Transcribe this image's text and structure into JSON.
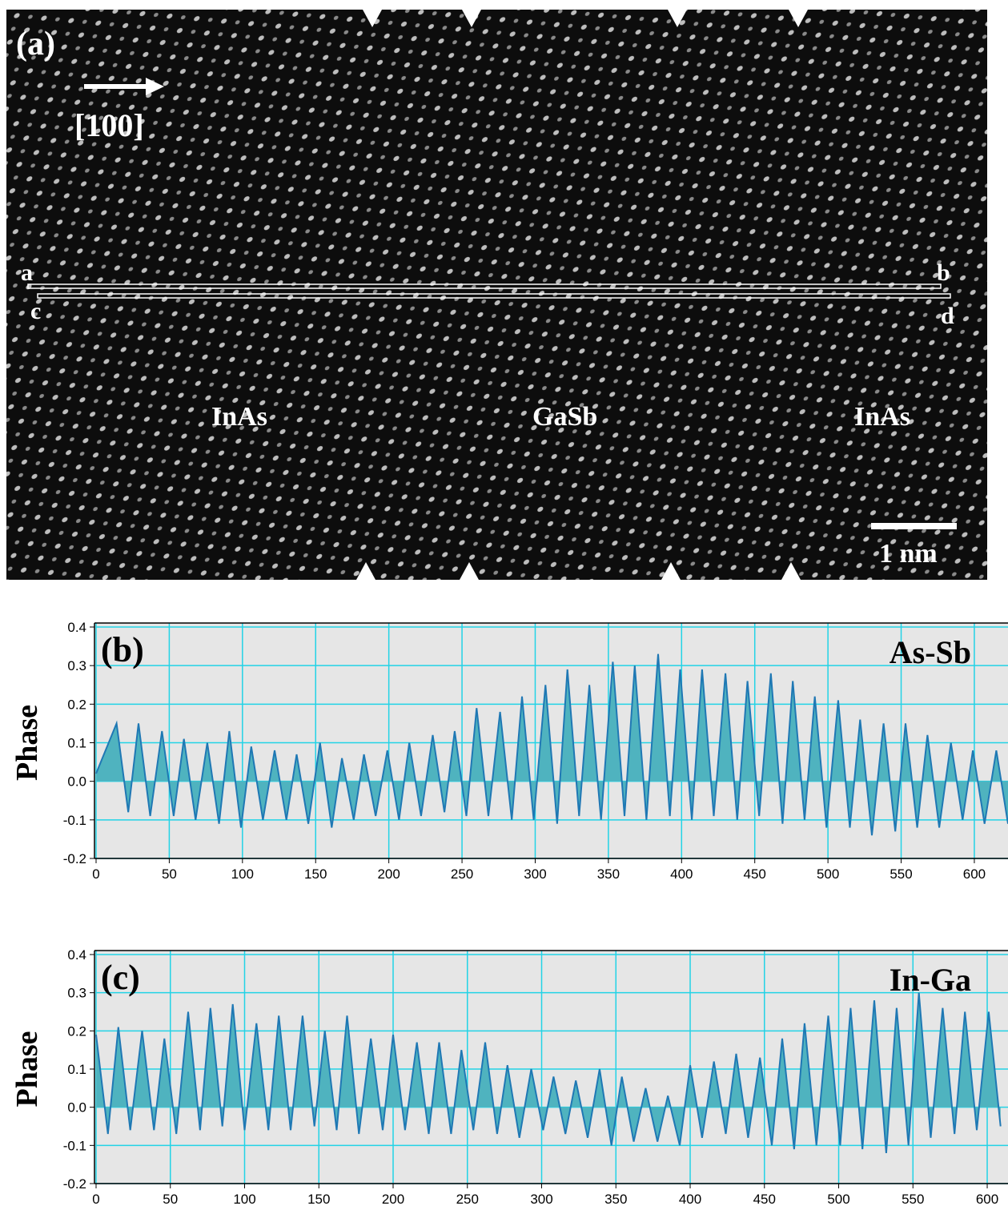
{
  "image_panel": {
    "panel_label": "(a)",
    "direction": "[100]",
    "line_labels": [
      "a",
      "b",
      "c",
      "d"
    ],
    "regions": [
      "InAs",
      "GaSb",
      "InAs"
    ],
    "scale_bar": "1 nm"
  },
  "chart_data": [
    {
      "type": "area",
      "panel_label": "(b)",
      "annotation": "As-Sb",
      "y_label": "Phase",
      "color": "#4fb3bf",
      "line_color": "#1f78b4",
      "grid_color": "#22d3e6",
      "grid": true,
      "xlim": [
        0,
        623
      ],
      "ylim": [
        -0.2,
        0.4
      ],
      "xticks": [
        0,
        50,
        100,
        150,
        200,
        250,
        300,
        350,
        400,
        450,
        500,
        550,
        600
      ],
      "yticks": [
        -0.2,
        -0.1,
        {
          "value": 0,
          "label": "0.0"
        },
        0.1,
        0.2,
        0.3,
        0.4
      ],
      "x": [
        0,
        14,
        22,
        29,
        37,
        45,
        53,
        60,
        68,
        76,
        84,
        91,
        99,
        106,
        114,
        122,
        130,
        137,
        145,
        153,
        161,
        168,
        176,
        183,
        191,
        199,
        207,
        214,
        222,
        230,
        238,
        245,
        253,
        260,
        268,
        276,
        284,
        291,
        299,
        307,
        315,
        322,
        330,
        337,
        345,
        353,
        361,
        368,
        376,
        384,
        392,
        399,
        407,
        414,
        422,
        430,
        438,
        445,
        453,
        461,
        469,
        476,
        484,
        491,
        499,
        507,
        515,
        522,
        530,
        538,
        546,
        553,
        561,
        568,
        576,
        584,
        592,
        599,
        607,
        615,
        623
      ],
      "values": [
        0.02,
        0.15,
        -0.08,
        0.15,
        -0.09,
        0.13,
        -0.09,
        0.11,
        -0.1,
        0.1,
        -0.11,
        0.13,
        -0.12,
        0.09,
        -0.1,
        0.08,
        -0.1,
        0.07,
        -0.11,
        0.1,
        -0.12,
        0.06,
        -0.1,
        0.07,
        -0.09,
        0.08,
        -0.1,
        0.1,
        -0.09,
        0.12,
        -0.08,
        0.13,
        -0.09,
        0.19,
        -0.09,
        0.18,
        -0.1,
        0.22,
        -0.1,
        0.25,
        -0.11,
        0.29,
        -0.09,
        0.25,
        -0.1,
        0.31,
        -0.09,
        0.3,
        -0.1,
        0.33,
        -0.09,
        0.29,
        -0.1,
        0.29,
        -0.09,
        0.28,
        -0.1,
        0.26,
        -0.09,
        0.28,
        -0.11,
        0.26,
        -0.1,
        0.22,
        -0.12,
        0.21,
        -0.12,
        0.16,
        -0.14,
        0.15,
        -0.13,
        0.15,
        -0.12,
        0.12,
        -0.12,
        0.1,
        -0.1,
        0.08,
        -0.11,
        0.08,
        -0.11
      ]
    },
    {
      "type": "area",
      "panel_label": "(c)",
      "annotation": "In-Ga",
      "y_label": "Phase",
      "color": "#4fb3bf",
      "line_color": "#1f78b4",
      "grid_color": "#22d3e6",
      "grid": true,
      "xlim": [
        0,
        614
      ],
      "ylim": [
        -0.2,
        0.4
      ],
      "xticks": [
        0,
        50,
        100,
        150,
        200,
        250,
        300,
        350,
        400,
        450,
        500,
        550,
        600
      ],
      "yticks": [
        -0.2,
        -0.1,
        {
          "value": 0,
          "label": "0.0"
        },
        0.1,
        0.2,
        0.3,
        0.4
      ],
      "x": [
        0,
        8,
        15,
        23,
        31,
        39,
        46,
        54,
        62,
        70,
        77,
        85,
        92,
        100,
        108,
        116,
        123,
        131,
        139,
        147,
        154,
        162,
        169,
        177,
        185,
        193,
        200,
        208,
        216,
        224,
        231,
        239,
        246,
        254,
        262,
        270,
        277,
        285,
        293,
        301,
        308,
        316,
        323,
        331,
        339,
        347,
        354,
        362,
        370,
        378,
        385,
        393,
        400,
        408,
        416,
        424,
        431,
        439,
        447,
        455,
        462,
        470,
        477,
        485,
        493,
        501,
        508,
        516,
        524,
        532,
        539,
        547,
        554,
        562,
        570,
        578,
        585,
        593,
        601,
        609
      ],
      "values": [
        0.19,
        -0.07,
        0.21,
        -0.06,
        0.2,
        -0.06,
        0.18,
        -0.07,
        0.25,
        -0.06,
        0.26,
        -0.05,
        0.27,
        -0.06,
        0.22,
        -0.06,
        0.24,
        -0.06,
        0.24,
        -0.05,
        0.2,
        -0.06,
        0.24,
        -0.07,
        0.18,
        -0.06,
        0.19,
        -0.06,
        0.17,
        -0.07,
        0.17,
        -0.07,
        0.15,
        -0.06,
        0.17,
        -0.07,
        0.11,
        -0.08,
        0.1,
        -0.06,
        0.08,
        -0.07,
        0.07,
        -0.08,
        0.1,
        -0.1,
        0.08,
        -0.09,
        0.05,
        -0.09,
        0.03,
        -0.1,
        0.11,
        -0.08,
        0.12,
        -0.07,
        0.14,
        -0.08,
        0.13,
        -0.1,
        0.18,
        -0.11,
        0.22,
        -0.1,
        0.24,
        -0.1,
        0.26,
        -0.11,
        0.28,
        -0.12,
        0.26,
        -0.1,
        0.3,
        -0.08,
        0.26,
        -0.07,
        0.25,
        -0.06,
        0.25,
        -0.05
      ]
    }
  ]
}
